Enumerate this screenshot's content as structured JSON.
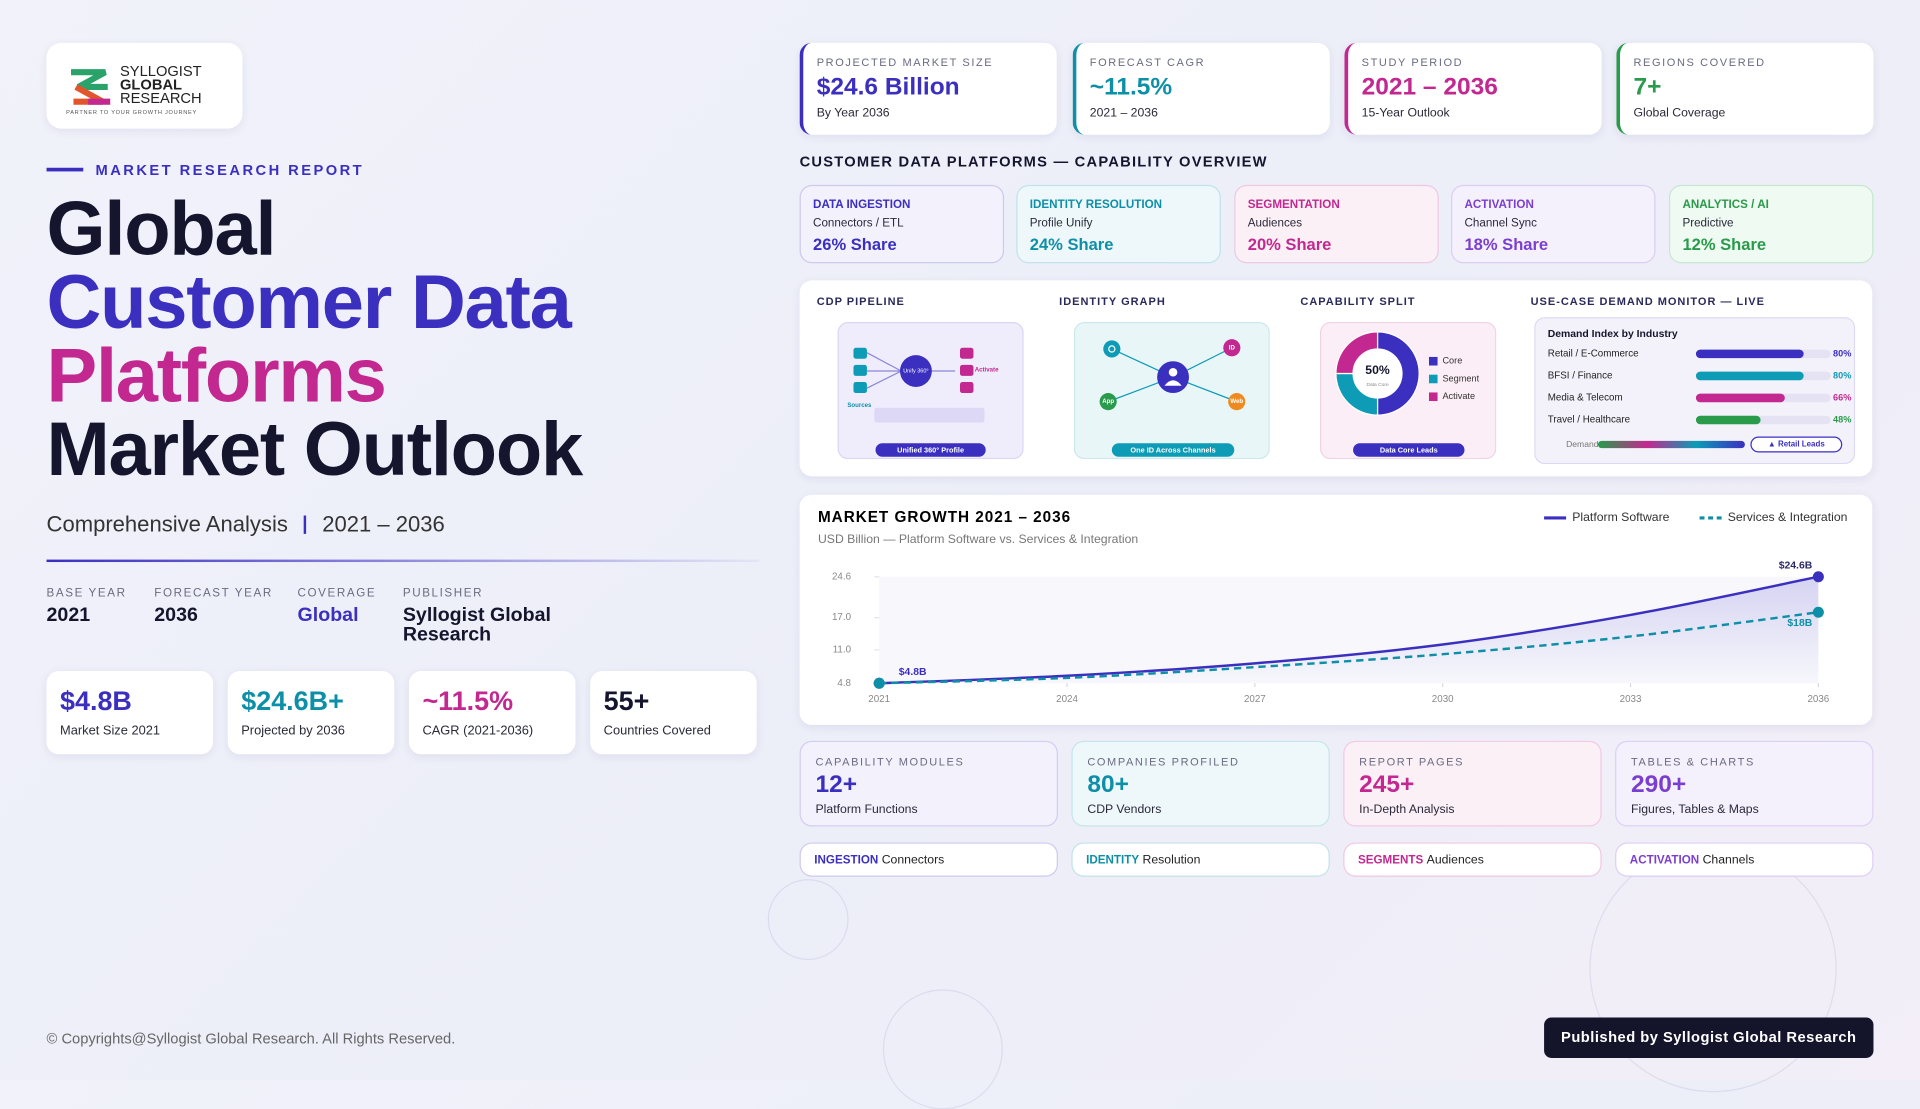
{
  "logo": {
    "line1": "SYLLOGIST",
    "line2": "GLOBAL",
    "line3": "RESEARCH",
    "tagline": "PARTNER TO YOUR GROWTH JOURNEY"
  },
  "hero": {
    "eyebrow": "MARKET RESEARCH REPORT",
    "title_lines": [
      "Global",
      "Customer Data",
      "Platforms",
      "Market Outlook"
    ],
    "subtitle": "Comprehensive Analysis",
    "period": "2021 – 2036"
  },
  "meta": [
    {
      "label": "BASE YEAR",
      "value": "2021"
    },
    {
      "label": "FORECAST YEAR",
      "value": "2036"
    },
    {
      "label": "COVERAGE",
      "value": "Global"
    },
    {
      "label": "PUBLISHER",
      "value": "Syllogist Global Research"
    }
  ],
  "stats": [
    {
      "value": "$4.8B",
      "label": "Market Size 2021"
    },
    {
      "value": "$24.6B+",
      "label": "Projected by 2036"
    },
    {
      "value": "~11.5%",
      "label": "CAGR (2021-2036)"
    },
    {
      "value": "55+",
      "label": "Countries Covered"
    }
  ],
  "kpis": [
    {
      "label": "PROJECTED MARKET SIZE",
      "value": "$24.6 Billion",
      "note": "By Year 2036"
    },
    {
      "label": "FORECAST CAGR",
      "value": "~11.5%",
      "note": "2021 – 2036"
    },
    {
      "label": "STUDY PERIOD",
      "value": "2021 – 2036",
      "note": "15-Year Outlook"
    },
    {
      "label": "REGIONS COVERED",
      "value": "7+",
      "note": "Global Coverage"
    }
  ],
  "capability": {
    "title": "CUSTOMER DATA PLATFORMS — CAPABILITY OVERVIEW",
    "cards": [
      {
        "label": "DATA INGESTION",
        "sub": "Connectors / ETL",
        "share": "26% Share"
      },
      {
        "label": "IDENTITY RESOLUTION",
        "sub": "Profile Unify",
        "share": "24% Share"
      },
      {
        "label": "SEGMENTATION",
        "sub": "Audiences",
        "share": "20% Share"
      },
      {
        "label": "ACTIVATION",
        "sub": "Channel Sync",
        "share": "18% Share"
      },
      {
        "label": "ANALYTICS / AI",
        "sub": "Predictive",
        "share": "12% Share"
      }
    ]
  },
  "pipeline": {
    "title": "CDP PIPELINE",
    "hub": "Unify 360°",
    "out": "Activate",
    "in": "Sources",
    "caption": "Unified 360° Profile"
  },
  "identity": {
    "title": "IDENTITY GRAPH",
    "nodes": [
      "ID",
      "App",
      "Web"
    ],
    "caption": "One ID Across Channels"
  },
  "chart_data": [
    {
      "type": "line",
      "title": "MARKET GROWTH 2021 – 2036",
      "subtitle": "USD Billion — Platform Software vs. Services & Integration",
      "x": [
        2021,
        2024,
        2027,
        2030,
        2033,
        2036
      ],
      "xlim": [
        2021,
        2036
      ],
      "xticks": [
        2021,
        2024,
        2027,
        2030,
        2033,
        2036
      ],
      "ylim": [
        4.8,
        24.6
      ],
      "yticks": [
        4.8,
        {
          "value": 11,
          "label": "11.0"
        },
        {
          "value": 17,
          "label": "17.0"
        },
        24.6
      ],
      "series": [
        {
          "name": "Platform Software",
          "color": "#3b2fc0",
          "values": [
            4.8,
            6.2,
            8.5,
            12.0,
            17.5,
            24.6
          ],
          "value_labels": [
            "$4.8B",
            null,
            null,
            null,
            null,
            "$24.6B"
          ]
        },
        {
          "name": "Services & Integration",
          "color": "#0e8fa8",
          "values": [
            4.8,
            5.8,
            7.8,
            10.2,
            13.5,
            18
          ],
          "value_labels": [
            null,
            null,
            null,
            null,
            null,
            "$18B"
          ]
        }
      ]
    },
    {
      "type": "bar",
      "title": "USE-CASE DEMAND MONITOR — LIVE",
      "subtitle": "Demand Index by Industry",
      "categories": [
        "Retail / E-Commerce",
        "BFSI / Finance",
        "Media & Telecom",
        "Travel / Healthcare"
      ],
      "values": [
        80,
        80,
        66,
        48
      ],
      "value_labels": [
        "80%",
        "80%",
        "66%",
        "48%"
      ],
      "colors": [
        "#3b2fc0",
        "#0e9bb5",
        "#c2288f",
        "#2a9a4b"
      ],
      "xlim": [
        0,
        100
      ],
      "legend_label": "Demand:",
      "badge": "▲ Retail Leads"
    },
    {
      "type": "pie",
      "title": "CAPABILITY SPLIT",
      "categories": [
        "Core",
        "Segment",
        "Activate"
      ],
      "values": [
        50,
        25,
        25
      ],
      "value_labels": [
        "50%",
        null,
        null
      ],
      "colors": [
        "#3b2fc0",
        "#0e9bb5",
        "#c2288f"
      ],
      "center_note": "Data Core",
      "caption": "Data Core Leads"
    }
  ],
  "counts": [
    {
      "label": "CAPABILITY MODULES",
      "value": "12+",
      "sub": "Platform Functions"
    },
    {
      "label": "COMPANIES PROFILED",
      "value": "80+",
      "sub": "CDP Vendors"
    },
    {
      "label": "REPORT PAGES",
      "value": "245+",
      "sub": "In-Depth Analysis"
    },
    {
      "label": "TABLES & CHARTS",
      "value": "290+",
      "sub": "Figures, Tables & Maps"
    }
  ],
  "tags": [
    {
      "key": "INGESTION",
      "text": "Connectors"
    },
    {
      "key": "IDENTITY",
      "text": "Resolution"
    },
    {
      "key": "SEGMENTS",
      "text": "Audiences"
    },
    {
      "key": "ACTIVATION",
      "text": "Channels"
    }
  ],
  "footer": {
    "copyright": "© Copyrights@Syllogist Global Research. All Rights Reserved.",
    "badge": "Published by Syllogist Global Research"
  }
}
